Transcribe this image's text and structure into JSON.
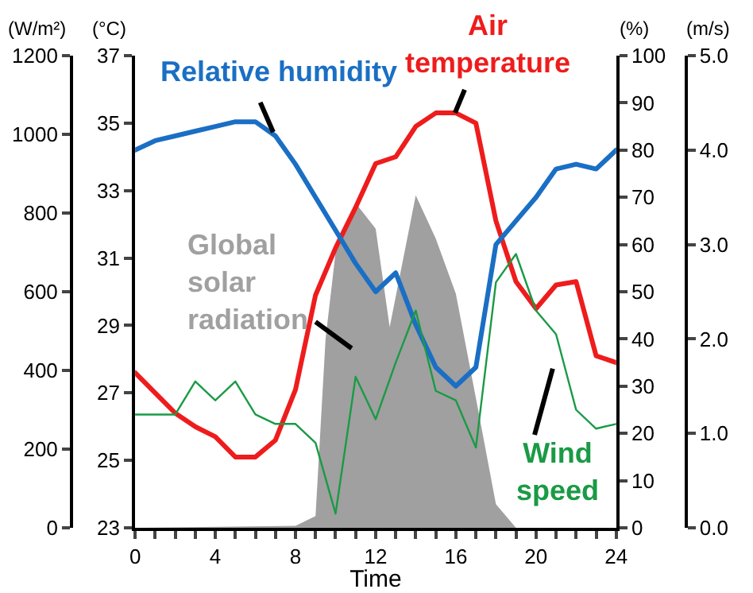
{
  "chart_data": [
    {
      "type": "line",
      "xlabel": "Time",
      "ylabel": "(W/m²)",
      "y2label": "(°C)",
      "y3label": "(%)",
      "xlim": [
        0,
        24
      ],
      "xticks": [
        0,
        {
          "value": 1,
          "label": null
        },
        {
          "value": 2,
          "label": null
        },
        {
          "value": 3,
          "label": null
        },
        4,
        {
          "value": 5,
          "label": null
        },
        {
          "value": 6,
          "label": null
        },
        {
          "value": 7,
          "label": null
        },
        8,
        {
          "value": 9,
          "label": null
        },
        {
          "value": 10,
          "label": null
        },
        {
          "value": 11,
          "label": null
        },
        12,
        {
          "value": 13,
          "label": null
        },
        {
          "value": 14,
          "label": null
        },
        {
          "value": 15,
          "label": null
        },
        16,
        {
          "value": 17,
          "label": null
        },
        {
          "value": 18,
          "label": null
        },
        {
          "value": 19,
          "label": null
        },
        20,
        {
          "value": 21,
          "label": null
        },
        {
          "value": 22,
          "label": null
        },
        {
          "value": 23,
          "label": null
        },
        24
      ],
      "ylim": [
        0,
        1200
      ],
      "yticks": [
        0,
        200,
        400,
        600,
        800,
        1000,
        1200
      ],
      "y2lim": [
        23,
        37
      ],
      "y2ticks": [
        23,
        25,
        27,
        29,
        31,
        33,
        35,
        37
      ],
      "y3lim": [
        0,
        100
      ],
      "y3ticks": [
        0,
        10,
        20,
        30,
        40,
        50,
        60,
        70,
        80,
        90,
        100
      ],
      "marker": "none",
      "series": [
        {
          "name": "Global\nsolar\nradiation",
          "type": "area",
          "axis": "y",
          "color": "#a0a0a0",
          "x": [
            0,
            8,
            9,
            9.5,
            10,
            11,
            12,
            12.7,
            14,
            15,
            16,
            17,
            18,
            19,
            24
          ],
          "values": [
            0,
            5,
            30,
            480,
            700,
            825,
            760,
            510,
            845,
            735,
            595,
            330,
            60,
            0,
            0
          ]
        },
        {
          "name": "Air\ntemperature",
          "axis": "y2",
          "color": "#ee1c1c",
          "x": [
            0,
            1,
            2,
            3,
            4,
            5,
            6,
            7,
            8,
            9,
            10,
            11,
            12,
            13,
            14,
            15,
            16,
            17,
            18,
            19,
            20,
            21,
            22,
            23,
            24
          ],
          "values": [
            27.6,
            27.0,
            26.4,
            26.0,
            25.7,
            25.1,
            25.1,
            25.6,
            27.1,
            29.9,
            31.3,
            32.5,
            33.8,
            34.0,
            34.9,
            35.3,
            35.3,
            35.0,
            32.1,
            30.3,
            29.5,
            30.2,
            30.3,
            28.1,
            27.9
          ]
        },
        {
          "name": "Relative humidity",
          "axis": "y3",
          "color": "#1a6fc4",
          "x": [
            0,
            1,
            2,
            3,
            4,
            5,
            6,
            7,
            8,
            9,
            10,
            11,
            12,
            13,
            14,
            15,
            16,
            17,
            18,
            19,
            20,
            21,
            22,
            23,
            24
          ],
          "values": [
            80,
            82,
            83,
            84,
            85,
            86,
            86,
            83,
            77,
            70,
            63,
            56,
            50,
            54,
            43,
            34,
            30,
            34,
            60,
            65,
            70,
            76,
            77,
            76,
            80
          ]
        }
      ]
    },
    {
      "type": "line",
      "ylabel": "(m/s)",
      "xlim": [
        0,
        24
      ],
      "ylim": [
        0,
        5
      ],
      "yticks": [
        "0.0",
        {
          "value": 1,
          "label": "1.0"
        },
        {
          "value": 2,
          "label": "2.0"
        },
        {
          "value": 3,
          "label": "3.0"
        },
        {
          "value": 4,
          "label": "4.0"
        },
        {
          "value": 5,
          "label": "5.0"
        }
      ],
      "tick_labels": "y",
      "marker": "none",
      "series": [
        {
          "name": "Wind\nspeed",
          "color": "#1a9a45",
          "x": [
            0,
            1,
            2,
            3,
            4,
            5,
            6,
            7,
            8,
            9,
            10,
            11,
            12,
            13,
            14,
            15,
            16,
            17,
            18,
            19,
            20,
            21,
            22,
            23,
            24
          ],
          "values": [
            1.2,
            1.2,
            1.2,
            1.55,
            1.35,
            1.55,
            1.2,
            1.1,
            1.1,
            0.9,
            0.15,
            1.6,
            1.15,
            1.75,
            2.3,
            1.45,
            1.35,
            0.85,
            2.6,
            2.9,
            2.3,
            2.05,
            1.25,
            1.05,
            1.1
          ]
        }
      ]
    }
  ]
}
